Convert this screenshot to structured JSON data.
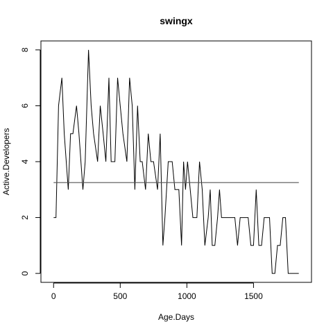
{
  "chart_data": {
    "type": "line",
    "title": "swingx",
    "xlabel": "Age.Days",
    "ylabel": "Active.Developers",
    "xlim": [
      -95,
      1935
    ],
    "ylim": [
      -0.32,
      8.32
    ],
    "xticks": [
      0,
      500,
      1000,
      1500
    ],
    "yticks": [
      0,
      2,
      4,
      6,
      8
    ],
    "xtick_labels": [
      "0",
      "500",
      "1000",
      "1500"
    ],
    "ytick_labels": [
      "0",
      "2",
      "4",
      "6",
      "8"
    ],
    "grid": false,
    "legend": "none",
    "line_color": "#000000",
    "reference_line_color": "#555555",
    "series": [
      {
        "x": [
          0,
          18,
          37,
          62,
          80,
          110,
          127,
          145,
          172,
          190,
          220,
          237,
          262,
          282,
          300,
          330,
          350,
          372,
          392,
          415,
          432,
          460,
          480,
          500,
          520,
          550,
          570,
          590,
          610,
          630,
          650,
          665,
          690,
          710,
          730,
          750,
          780,
          800,
          820,
          835,
          860,
          875,
          890,
          910,
          925,
          940,
          960,
          975,
          990,
          1005,
          1025,
          1045,
          1075,
          1095,
          1115,
          1135,
          1160,
          1175,
          1190,
          1210,
          1230,
          1245,
          1260,
          1285,
          1300,
          1320,
          1340,
          1360,
          1380,
          1400,
          1420,
          1445,
          1460,
          1480,
          1500,
          1520,
          1540,
          1560,
          1580,
          1600,
          1620,
          1640,
          1660,
          1680,
          1700,
          1720,
          1740,
          1760,
          1780,
          1800,
          1820,
          1840
        ],
        "values": [
          2,
          2,
          6,
          7,
          5,
          3,
          5,
          5,
          6,
          5,
          3,
          4,
          8,
          6,
          5,
          4,
          6,
          5,
          4,
          7,
          4,
          4,
          7,
          6,
          5,
          4,
          7,
          6,
          3,
          6,
          4,
          4,
          3,
          5,
          4,
          4,
          3,
          5,
          1,
          2,
          4,
          4,
          4,
          3,
          3,
          3,
          1,
          4,
          3,
          4,
          3,
          2,
          2,
          4,
          3,
          1,
          2,
          3,
          1,
          1,
          2,
          3,
          2,
          2,
          2,
          2,
          2,
          2,
          1,
          2,
          2,
          2,
          2,
          1,
          1,
          3,
          1,
          1,
          2,
          2,
          2,
          0,
          0,
          1,
          1,
          2,
          2,
          0,
          0,
          0,
          0,
          0
        ]
      }
    ],
    "reference_line": {
      "orientation": "horizontal",
      "y": 3.25,
      "x_range": [
        0,
        1840
      ]
    }
  }
}
